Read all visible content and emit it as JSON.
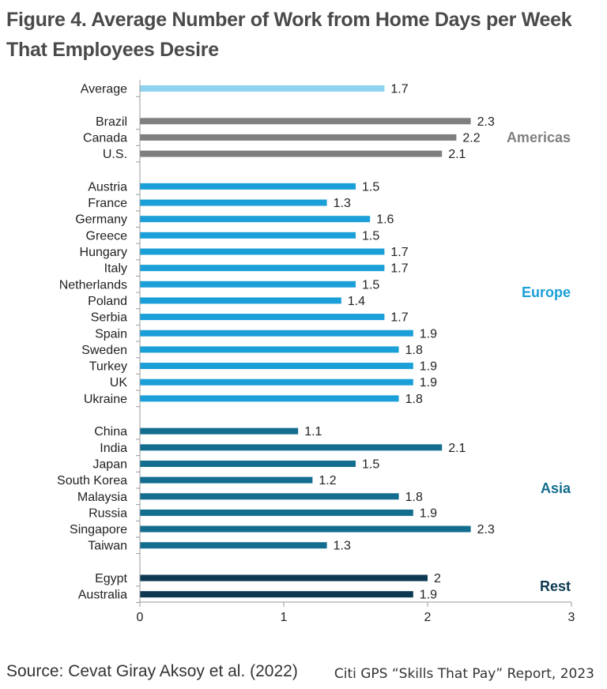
{
  "title": "Figure 4. Average Number of Work from Home Days per Week That Employees Desire",
  "source": "Source: Cevat Giray Aksoy et al. (2022)",
  "credit": "Citi GPS “Skills That Pay” Report, 2023",
  "colors": {
    "average": "#8fd3f0",
    "americas": "#7f7f7f",
    "europe": "#1b9fd8",
    "asia": "#136d8f",
    "rest": "#0d3a52"
  },
  "chart_data": {
    "type": "bar",
    "orientation": "horizontal",
    "xlim": [
      0,
      3
    ],
    "xticks": [
      "0",
      "1",
      "2",
      "3"
    ],
    "grid": false,
    "groups": [
      {
        "name": "",
        "color_key": "average",
        "categories": [
          "Average"
        ],
        "values": [
          1.7
        ],
        "labels": [
          "1.7"
        ]
      },
      {
        "name": "Americas",
        "color_key": "americas",
        "categories": [
          "Brazil",
          "Canada",
          "U.S."
        ],
        "values": [
          2.3,
          2.2,
          2.1
        ],
        "labels": [
          "2.3",
          "2.2",
          "2.1"
        ]
      },
      {
        "name": "Europe",
        "color_key": "europe",
        "categories": [
          "Austria",
          "France",
          "Germany",
          "Greece",
          "Hungary",
          "Italy",
          "Netherlands",
          "Poland",
          "Serbia",
          "Spain",
          "Sweden",
          "Turkey",
          "UK",
          "Ukraine"
        ],
        "values": [
          1.5,
          1.3,
          1.6,
          1.5,
          1.7,
          1.7,
          1.5,
          1.4,
          1.7,
          1.9,
          1.8,
          1.9,
          1.9,
          1.8
        ],
        "labels": [
          "1.5",
          "1.3",
          "1.6",
          "1.5",
          "1.7",
          "1.7",
          "1.5",
          "1.4",
          "1.7",
          "1.9",
          "1.8",
          "1.9",
          "1.9",
          "1.8"
        ]
      },
      {
        "name": "Asia",
        "color_key": "asia",
        "categories": [
          "China",
          "India",
          "Japan",
          "South Korea",
          "Malaysia",
          "Russia",
          "Singapore",
          "Taiwan"
        ],
        "values": [
          1.1,
          2.1,
          1.5,
          1.2,
          1.8,
          1.9,
          2.3,
          1.3
        ],
        "labels": [
          "1.1",
          "2.1",
          "1.5",
          "1.2",
          "1.8",
          "1.9",
          "2.3",
          "1.3"
        ]
      },
      {
        "name": "Rest",
        "color_key": "rest",
        "categories": [
          "Egypt",
          "Australia"
        ],
        "values": [
          2,
          1.9
        ],
        "labels": [
          "2",
          "1.9"
        ]
      }
    ]
  }
}
